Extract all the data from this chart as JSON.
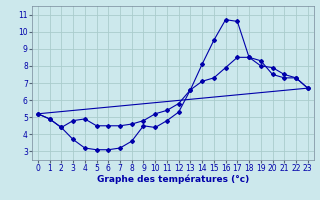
{
  "title": "Graphe des températures (°c)",
  "bg_color": "#cce8ec",
  "grid_color": "#aacccc",
  "line_color": "#0000aa",
  "xlim": [
    -0.5,
    23.5
  ],
  "ylim": [
    2.5,
    11.5
  ],
  "xticks": [
    0,
    1,
    2,
    3,
    4,
    5,
    6,
    7,
    8,
    9,
    10,
    11,
    12,
    13,
    14,
    15,
    16,
    17,
    18,
    19,
    20,
    21,
    22,
    23
  ],
  "yticks": [
    3,
    4,
    5,
    6,
    7,
    8,
    9,
    10,
    11
  ],
  "series1_x": [
    0,
    1,
    2,
    3,
    4,
    5,
    6,
    7,
    8,
    9,
    10,
    11,
    12,
    13,
    14,
    15,
    16,
    17,
    18,
    19,
    20,
    21,
    22,
    23
  ],
  "series1_y": [
    5.2,
    4.9,
    4.4,
    3.7,
    3.2,
    3.1,
    3.1,
    3.2,
    3.6,
    4.5,
    4.4,
    4.8,
    5.3,
    6.6,
    8.1,
    9.5,
    10.7,
    10.6,
    8.5,
    8.3,
    7.5,
    7.3,
    7.3,
    6.7
  ],
  "series2_x": [
    0,
    1,
    2,
    3,
    4,
    5,
    6,
    7,
    8,
    9,
    10,
    11,
    12,
    13,
    14,
    15,
    16,
    17,
    18,
    19,
    20,
    21,
    22,
    23
  ],
  "series2_y": [
    5.2,
    4.9,
    4.4,
    4.8,
    4.9,
    4.5,
    4.5,
    4.5,
    4.6,
    4.8,
    5.2,
    5.4,
    5.8,
    6.6,
    7.1,
    7.3,
    7.9,
    8.5,
    8.5,
    8.0,
    7.9,
    7.5,
    7.3,
    6.7
  ],
  "series3_x": [
    0,
    23
  ],
  "series3_y": [
    5.2,
    6.7
  ],
  "tick_fontsize": 5.5,
  "xlabel_fontsize": 6.5,
  "linewidth": 0.8,
  "markersize": 2.0
}
